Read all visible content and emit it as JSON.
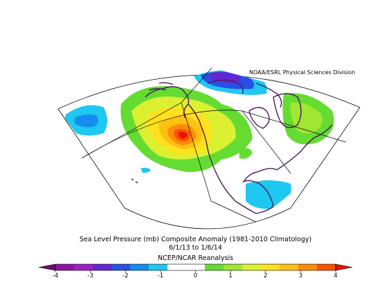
{
  "credit": "NOAA/ESRL Physical Sciences Division",
  "title_line1": "Sea Level Pressure (mb) Composite Anomaly (1981-2010 Climatology)",
  "title_line2": "6/1/13  to 1/6/14",
  "title_line3": "NCEP/NCAR Reanalysis",
  "colorbar": {
    "min": -4,
    "max": 4,
    "ticks": [
      "-4",
      "-3",
      "-2",
      "-1",
      "0",
      "1",
      "2",
      "3",
      "4"
    ],
    "colors": [
      "#6e0a6e",
      "#8c14a0",
      "#a01ec8",
      "#6428d2",
      "#2850e6",
      "#148cf0",
      "#1ec8f0",
      "#ffffff",
      "#ffffff",
      "#64dc32",
      "#a0e632",
      "#dcf032",
      "#ffe11e",
      "#ffc014",
      "#ff8c0a",
      "#ff5000",
      "#e61400"
    ]
  }
}
